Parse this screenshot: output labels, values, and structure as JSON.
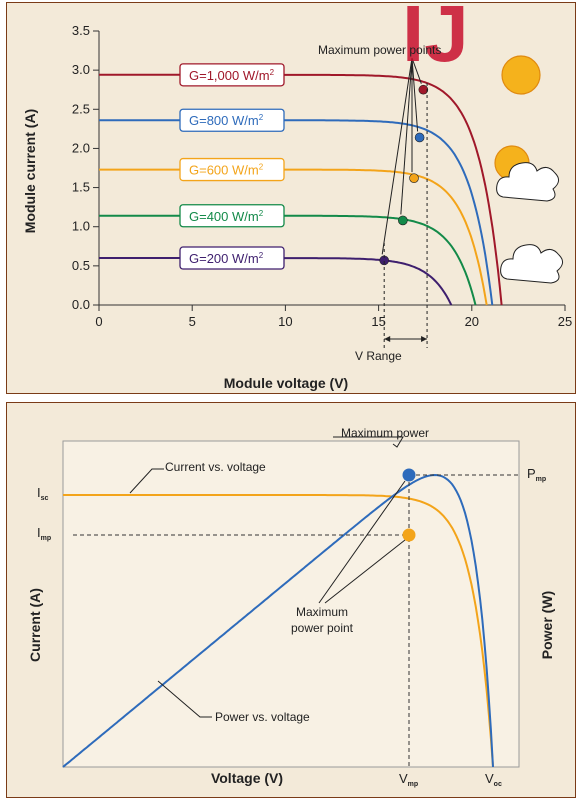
{
  "chart_data": [
    {
      "type": "line",
      "title": "",
      "xlabel": "Module voltage (V)",
      "ylabel": "Module current (A)",
      "xlim": [
        0,
        25
      ],
      "ylim": [
        0,
        3.5
      ],
      "x_ticks": [
        "0",
        "5",
        "10",
        "15",
        "20",
        "25"
      ],
      "y_ticks": [
        "0.0",
        "0.5",
        "1.0",
        "1.5",
        "2.0",
        "2.5",
        "3.0",
        "3.5"
      ],
      "grid": false,
      "annotations": {
        "mpp_label": "Maximum power points",
        "v_range_label": "V Range",
        "v_range": [
          15.3,
          17.6
        ]
      },
      "series": [
        {
          "name": "G=1,000 W/m²",
          "label_text": "G=1,000 W/m",
          "color": "#a0182a",
          "isc": 2.94,
          "voc": 21.6,
          "mpp": [
            17.4,
            2.75
          ],
          "icon": "sun-icon"
        },
        {
          "name": "G=800 W/m²",
          "label_text": "G=800 W/m",
          "color": "#2e6bbb",
          "isc": 2.36,
          "voc": 21.1,
          "mpp": [
            17.2,
            2.14
          ],
          "icon": ""
        },
        {
          "name": "G=600 W/m²",
          "label_text": "G=600 W/m",
          "color": "#f3a41a",
          "isc": 1.73,
          "voc": 20.8,
          "mpp": [
            16.9,
            1.62
          ],
          "icon": "partly-cloudy-icon"
        },
        {
          "name": "G=400 W/m²",
          "label_text": "G=400 W/m",
          "color": "#138a49",
          "isc": 1.14,
          "voc": 20.2,
          "mpp": [
            16.3,
            1.08
          ],
          "icon": ""
        },
        {
          "name": "G=200 W/m²",
          "label_text": "G=200 W/m",
          "color": "#3e1f6e",
          "isc": 0.6,
          "voc": 18.9,
          "mpp": [
            15.3,
            0.57
          ],
          "icon": "cloud-icon"
        }
      ]
    },
    {
      "type": "line",
      "title": "",
      "xlabel": "Voltage (V)",
      "ylabel": "Current (A)",
      "y2label": "Power (W)",
      "x_ticks": [
        "V",
        "V"
      ],
      "x_tick_subs": [
        "mp",
        "oc"
      ],
      "y_ticks": [
        "I",
        "I"
      ],
      "y_tick_subs": [
        "sc",
        "mp"
      ],
      "y2_ticks": [
        "P"
      ],
      "y2_tick_subs": [
        "mp"
      ],
      "series": [
        {
          "name": "Current vs. voltage",
          "color": "#f3a41a"
        },
        {
          "name": "Power vs. voltage",
          "color": "#2e6bbb"
        }
      ],
      "annotations": {
        "max_power": "Maximum power",
        "mpp_line1": "Maximum",
        "mpp_line2": "power point"
      }
    }
  ],
  "watermark": "IJ"
}
